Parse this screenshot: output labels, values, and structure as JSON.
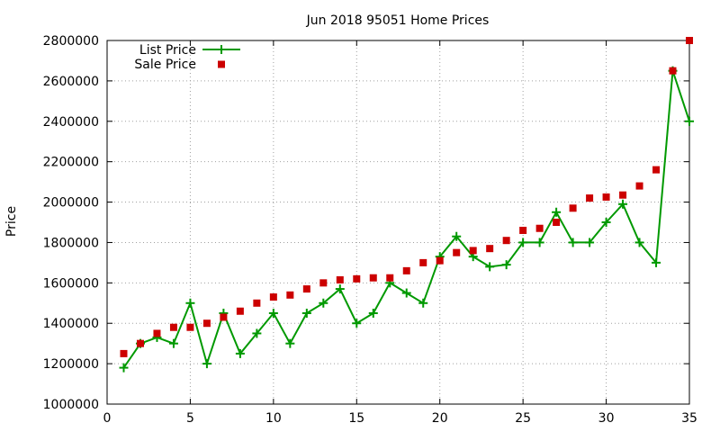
{
  "chart_data": {
    "type": "line",
    "title": "Jun 2018 95051 Home Prices",
    "xlabel": "",
    "ylabel": "Price",
    "xlim": [
      0,
      35
    ],
    "ylim": [
      1000000,
      2800000
    ],
    "x_ticks": [
      0,
      5,
      10,
      15,
      20,
      25,
      30,
      35
    ],
    "y_ticks": [
      1000000,
      1200000,
      1400000,
      1600000,
      1800000,
      2000000,
      2200000,
      2400000,
      2600000,
      2800000
    ],
    "grid": true,
    "legend_position": "top-left",
    "x": [
      1,
      2,
      3,
      4,
      5,
      6,
      7,
      8,
      9,
      10,
      11,
      12,
      13,
      14,
      15,
      16,
      17,
      18,
      19,
      20,
      21,
      22,
      23,
      24,
      25,
      26,
      27,
      28,
      29,
      30,
      31,
      32,
      33,
      34,
      35
    ],
    "series": [
      {
        "name": "List Price",
        "style": "linespoints",
        "color": "#009900",
        "values": [
          1180000,
          1300000,
          1330000,
          1300000,
          1500000,
          1200000,
          1450000,
          1250000,
          1350000,
          1450000,
          1300000,
          1450000,
          1500000,
          1570000,
          1400000,
          1450000,
          1600000,
          1550000,
          1500000,
          1730000,
          1830000,
          1730000,
          1680000,
          1690000,
          1800000,
          1800000,
          1950000,
          1800000,
          1800000,
          1900000,
          1990000,
          1800000,
          1700000,
          2650000,
          2400000
        ]
      },
      {
        "name": "Sale Price",
        "style": "points",
        "color": "#cc0000",
        "values": [
          1250000,
          1300000,
          1350000,
          1380000,
          1380000,
          1400000,
          1430000,
          1460000,
          1500000,
          1530000,
          1540000,
          1570000,
          1600000,
          1615000,
          1620000,
          1625000,
          1625000,
          1660000,
          1700000,
          1710000,
          1750000,
          1760000,
          1770000,
          1810000,
          1860000,
          1870000,
          1900000,
          1970000,
          2020000,
          2025000,
          2035000,
          2080000,
          2160000,
          2650000,
          2800000
        ]
      }
    ]
  }
}
